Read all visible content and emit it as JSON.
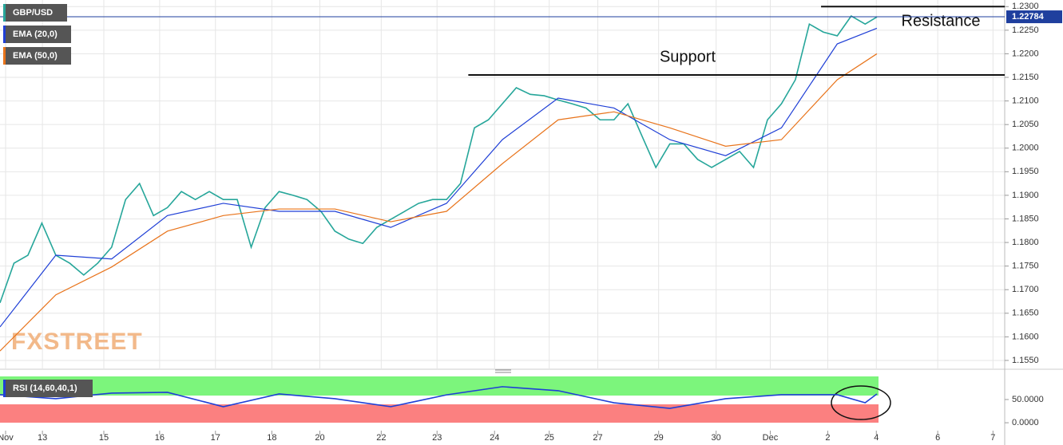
{
  "chart_data": [
    {
      "type": "line",
      "title": "GBP/USD",
      "ylim": [
        1.1533,
        1.2314
      ],
      "yticks": [
        {
          "value": 1.155,
          "label": "1.1550"
        },
        {
          "value": 1.16,
          "label": "1.1600"
        },
        {
          "value": 1.165,
          "label": "1.1650"
        },
        {
          "value": 1.17,
          "label": "1.1700"
        },
        {
          "value": 1.175,
          "label": "1.1750"
        },
        {
          "value": 1.18,
          "label": "1.1800"
        },
        {
          "value": 1.185,
          "label": "1.1850"
        },
        {
          "value": 1.19,
          "label": "1.1900"
        },
        {
          "value": 1.195,
          "label": "1.1950"
        },
        {
          "value": 1.2,
          "label": "1.2000"
        },
        {
          "value": 1.205,
          "label": "1.2050"
        },
        {
          "value": 1.21,
          "label": "1.2100"
        },
        {
          "value": 1.215,
          "label": "1.2150"
        },
        {
          "value": 1.22,
          "label": "1.2200"
        },
        {
          "value": 1.225,
          "label": "1.2250"
        },
        {
          "value": 1.23,
          "label": "1.2300"
        }
      ],
      "grid": true,
      "series": [
        {
          "name": "GBP/USD",
          "color": "#26a69a",
          "x": [
            0,
            0.25,
            0.5,
            0.75,
            1,
            1.25,
            1.5,
            1.75,
            2,
            2.25,
            2.5,
            2.75,
            3,
            3.25,
            3.5,
            3.75,
            4,
            4.25,
            4.5,
            4.75,
            5,
            5.25,
            5.5,
            5.75,
            6,
            6.25,
            6.5,
            6.75,
            7,
            7.25,
            7.5,
            7.75,
            8,
            8.25,
            8.5,
            8.75,
            9,
            9.25,
            9.5,
            9.75,
            10,
            10.25,
            10.5,
            10.75,
            11,
            11.25,
            11.5,
            11.75,
            12,
            12.25,
            12.5,
            12.75,
            13,
            13.25,
            13.5,
            13.75,
            14,
            14.25,
            14.5,
            14.75,
            15,
            15.25,
            15.5,
            15.71
          ],
          "values": [
            1.1672,
            1.1756,
            1.1773,
            1.1841,
            1.1773,
            1.1756,
            1.1731,
            1.1756,
            1.179,
            1.1891,
            1.1925,
            1.1857,
            1.1874,
            1.1908,
            1.1891,
            1.1908,
            1.1891,
            1.1891,
            1.179,
            1.1874,
            1.1908,
            1.19,
            1.1891,
            1.1866,
            1.1824,
            1.1807,
            1.1798,
            1.1832,
            1.1849,
            1.1866,
            1.1883,
            1.1891,
            1.1891,
            1.1925,
            1.2043,
            1.206,
            1.2094,
            1.2128,
            1.2114,
            1.2111,
            1.2102,
            1.2094,
            1.2085,
            1.206,
            1.206,
            1.2094,
            1.2026,
            1.1959,
            1.2009,
            1.2009,
            1.1976,
            1.1959,
            1.1976,
            1.1993,
            1.1959,
            1.206,
            1.2094,
            1.2145,
            1.2263,
            1.2246,
            1.2238,
            1.228,
            1.2263,
            1.2278
          ]
        },
        {
          "name": "EMA (20,0)",
          "color": "#1f3fd6",
          "x": [
            0,
            1,
            2,
            3,
            4,
            5,
            6,
            7,
            8,
            9,
            10,
            11,
            12,
            13,
            14,
            15,
            15.71
          ],
          "values": [
            1.1621,
            1.1773,
            1.1765,
            1.1857,
            1.1883,
            1.1866,
            1.1866,
            1.1832,
            1.1883,
            1.2018,
            1.2106,
            1.2085,
            1.2018,
            1.1984,
            1.2043,
            1.2221,
            1.2254
          ]
        },
        {
          "name": "EMA (50,0)",
          "color": "#e8731a",
          "x": [
            0,
            1,
            2,
            3,
            4,
            5,
            6,
            7,
            8,
            9,
            10,
            11,
            12,
            13,
            14,
            15,
            15.71
          ],
          "values": [
            1.157,
            1.1689,
            1.1748,
            1.1824,
            1.1857,
            1.1871,
            1.1871,
            1.1844,
            1.1866,
            1.1967,
            1.206,
            1.2077,
            1.2043,
            1.2004,
            1.2018,
            1.2145,
            1.22
          ]
        }
      ],
      "last_price": {
        "value": 1.22784,
        "label": "1.22784"
      },
      "annotations": [
        {
          "text": "Resistance",
          "value": 1.23,
          "from_x": 14.71
        },
        {
          "text": "Support",
          "value": 1.2155,
          "from_x": 8.39
        }
      ],
      "watermark": "FXSTREET"
    },
    {
      "type": "line",
      "title": "RSI",
      "xlim": [
        0,
        18
      ],
      "ylim": [
        -17,
        110
      ],
      "xticks": [
        {
          "value": 0.1,
          "label": "Nov"
        },
        {
          "value": 0.76,
          "label": "13"
        },
        {
          "value": 1.86,
          "label": "15"
        },
        {
          "value": 2.86,
          "label": "16"
        },
        {
          "value": 3.86,
          "label": "17"
        },
        {
          "value": 4.87,
          "label": "18"
        },
        {
          "value": 5.73,
          "label": "20"
        },
        {
          "value": 6.83,
          "label": "22"
        },
        {
          "value": 7.83,
          "label": "23"
        },
        {
          "value": 8.86,
          "label": "24"
        },
        {
          "value": 9.84,
          "label": "25"
        },
        {
          "value": 10.71,
          "label": "27"
        },
        {
          "value": 11.8,
          "label": "29"
        },
        {
          "value": 12.83,
          "label": "30"
        },
        {
          "value": 13.8,
          "label": "Dec"
        },
        {
          "value": 14.83,
          "label": "2"
        },
        {
          "value": 15.7,
          "label": "4"
        },
        {
          "value": 16.8,
          "label": "6"
        },
        {
          "value": 17.79,
          "label": "7"
        }
      ],
      "yticks": [
        {
          "value": 0,
          "label": "0.0000"
        },
        {
          "value": 50,
          "label": "50.0000"
        }
      ],
      "series": [
        {
          "name": "RSI (14,60,40,1)",
          "color": "#1f3fd6",
          "x": [
            0,
            1,
            2,
            3,
            4,
            5,
            6,
            7,
            8,
            9,
            10,
            11,
            12,
            13,
            14,
            15,
            15.5,
            15.71
          ],
          "values": [
            60.3,
            51.7,
            63.8,
            65.5,
            34.5,
            62,
            51.7,
            34.5,
            60,
            77.6,
            69,
            43,
            31,
            51.7,
            60.3,
            60.3,
            43,
            62
          ]
        }
      ]
    }
  ]
}
